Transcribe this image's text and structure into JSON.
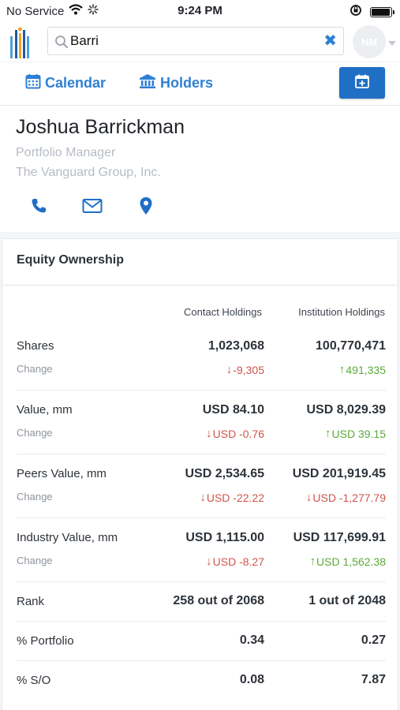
{
  "status_bar": {
    "carrier": "No Service",
    "time": "9:24 PM"
  },
  "search": {
    "value": "Barri"
  },
  "avatar": {
    "initials": "NM"
  },
  "tabs": {
    "calendar": "Calendar",
    "holders": "Holders"
  },
  "profile": {
    "name": "Joshua Barrickman",
    "title": "Portfolio Manager",
    "company": "The Vanguard Group, Inc."
  },
  "equity": {
    "title": "Equity Ownership",
    "col_contact": "Contact Holdings",
    "col_institution": "Institution Holdings",
    "rows": [
      {
        "label": "Shares",
        "sub": "Change",
        "contact": "1,023,068",
        "institution": "100,770,471",
        "contact_change": "-9,305",
        "institution_change": "491,335"
      },
      {
        "label": "Value, mm",
        "sub": "Change",
        "contact": "USD 84.10",
        "institution": "USD 8,029.39",
        "contact_change": "USD -0.76",
        "institution_change": "USD 39.15"
      },
      {
        "label": "Peers Value, mm",
        "sub": "Change",
        "contact": "USD 2,534.65",
        "institution": "USD 201,919.45",
        "contact_change": "USD -22.22",
        "institution_change": "USD -1,277.79"
      },
      {
        "label": "Industry Value, mm",
        "sub": "Change",
        "contact": "USD 1,115.00",
        "institution": "USD 117,699.91",
        "contact_change": "USD -8.27",
        "institution_change": "USD 1,562.38"
      },
      {
        "label": "Rank",
        "contact": "258 out of 2068",
        "institution": "1 out of 2048"
      },
      {
        "label": "% Portfolio",
        "contact": "0.34",
        "institution": "0.27"
      },
      {
        "label": "% S/O",
        "contact": "0.08",
        "institution": "7.87"
      }
    ]
  },
  "colors": {
    "accent": "#2f7fd5",
    "button": "#1f6fc5",
    "negative": "#d0554b",
    "positive": "#5aaa3a"
  },
  "icons": [
    "wifi-icon",
    "loading-icon",
    "rotation-lock-icon",
    "battery-icon",
    "app-logo",
    "search-icon",
    "clear-icon",
    "calendar-icon",
    "bank-icon",
    "calendar-add-icon",
    "phone-icon",
    "mail-icon",
    "location-pin-icon",
    "arrow-down-icon",
    "arrow-up-icon"
  ]
}
